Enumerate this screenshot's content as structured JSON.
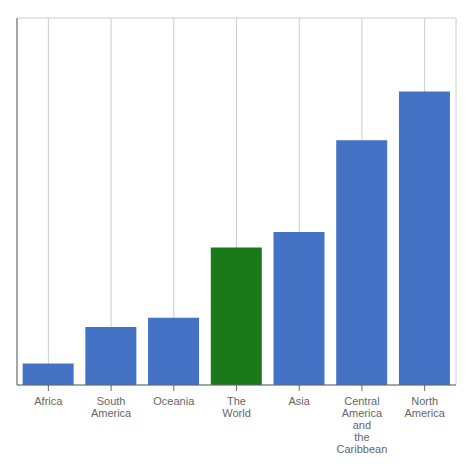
{
  "chart_data": {
    "type": "bar",
    "categories": [
      "Africa",
      "South\nAmerica",
      "Oceania",
      "The\nWorld",
      "Asia",
      "Central\nAmerica\nand\nthe\nCaribbean",
      "North\nAmerica"
    ],
    "values": [
      3.5,
      9.5,
      11.0,
      22.5,
      25.0,
      40.0,
      48.0
    ],
    "colors": [
      "#4472c4",
      "#4472c4",
      "#4472c4",
      "#1a7a1a",
      "#4472c4",
      "#4472c4",
      "#4472c4"
    ],
    "ylim": [
      0,
      60
    ],
    "yticks": [
      10,
      20,
      30,
      40,
      50,
      60
    ],
    "grid": true,
    "tick_labels": "x"
  }
}
